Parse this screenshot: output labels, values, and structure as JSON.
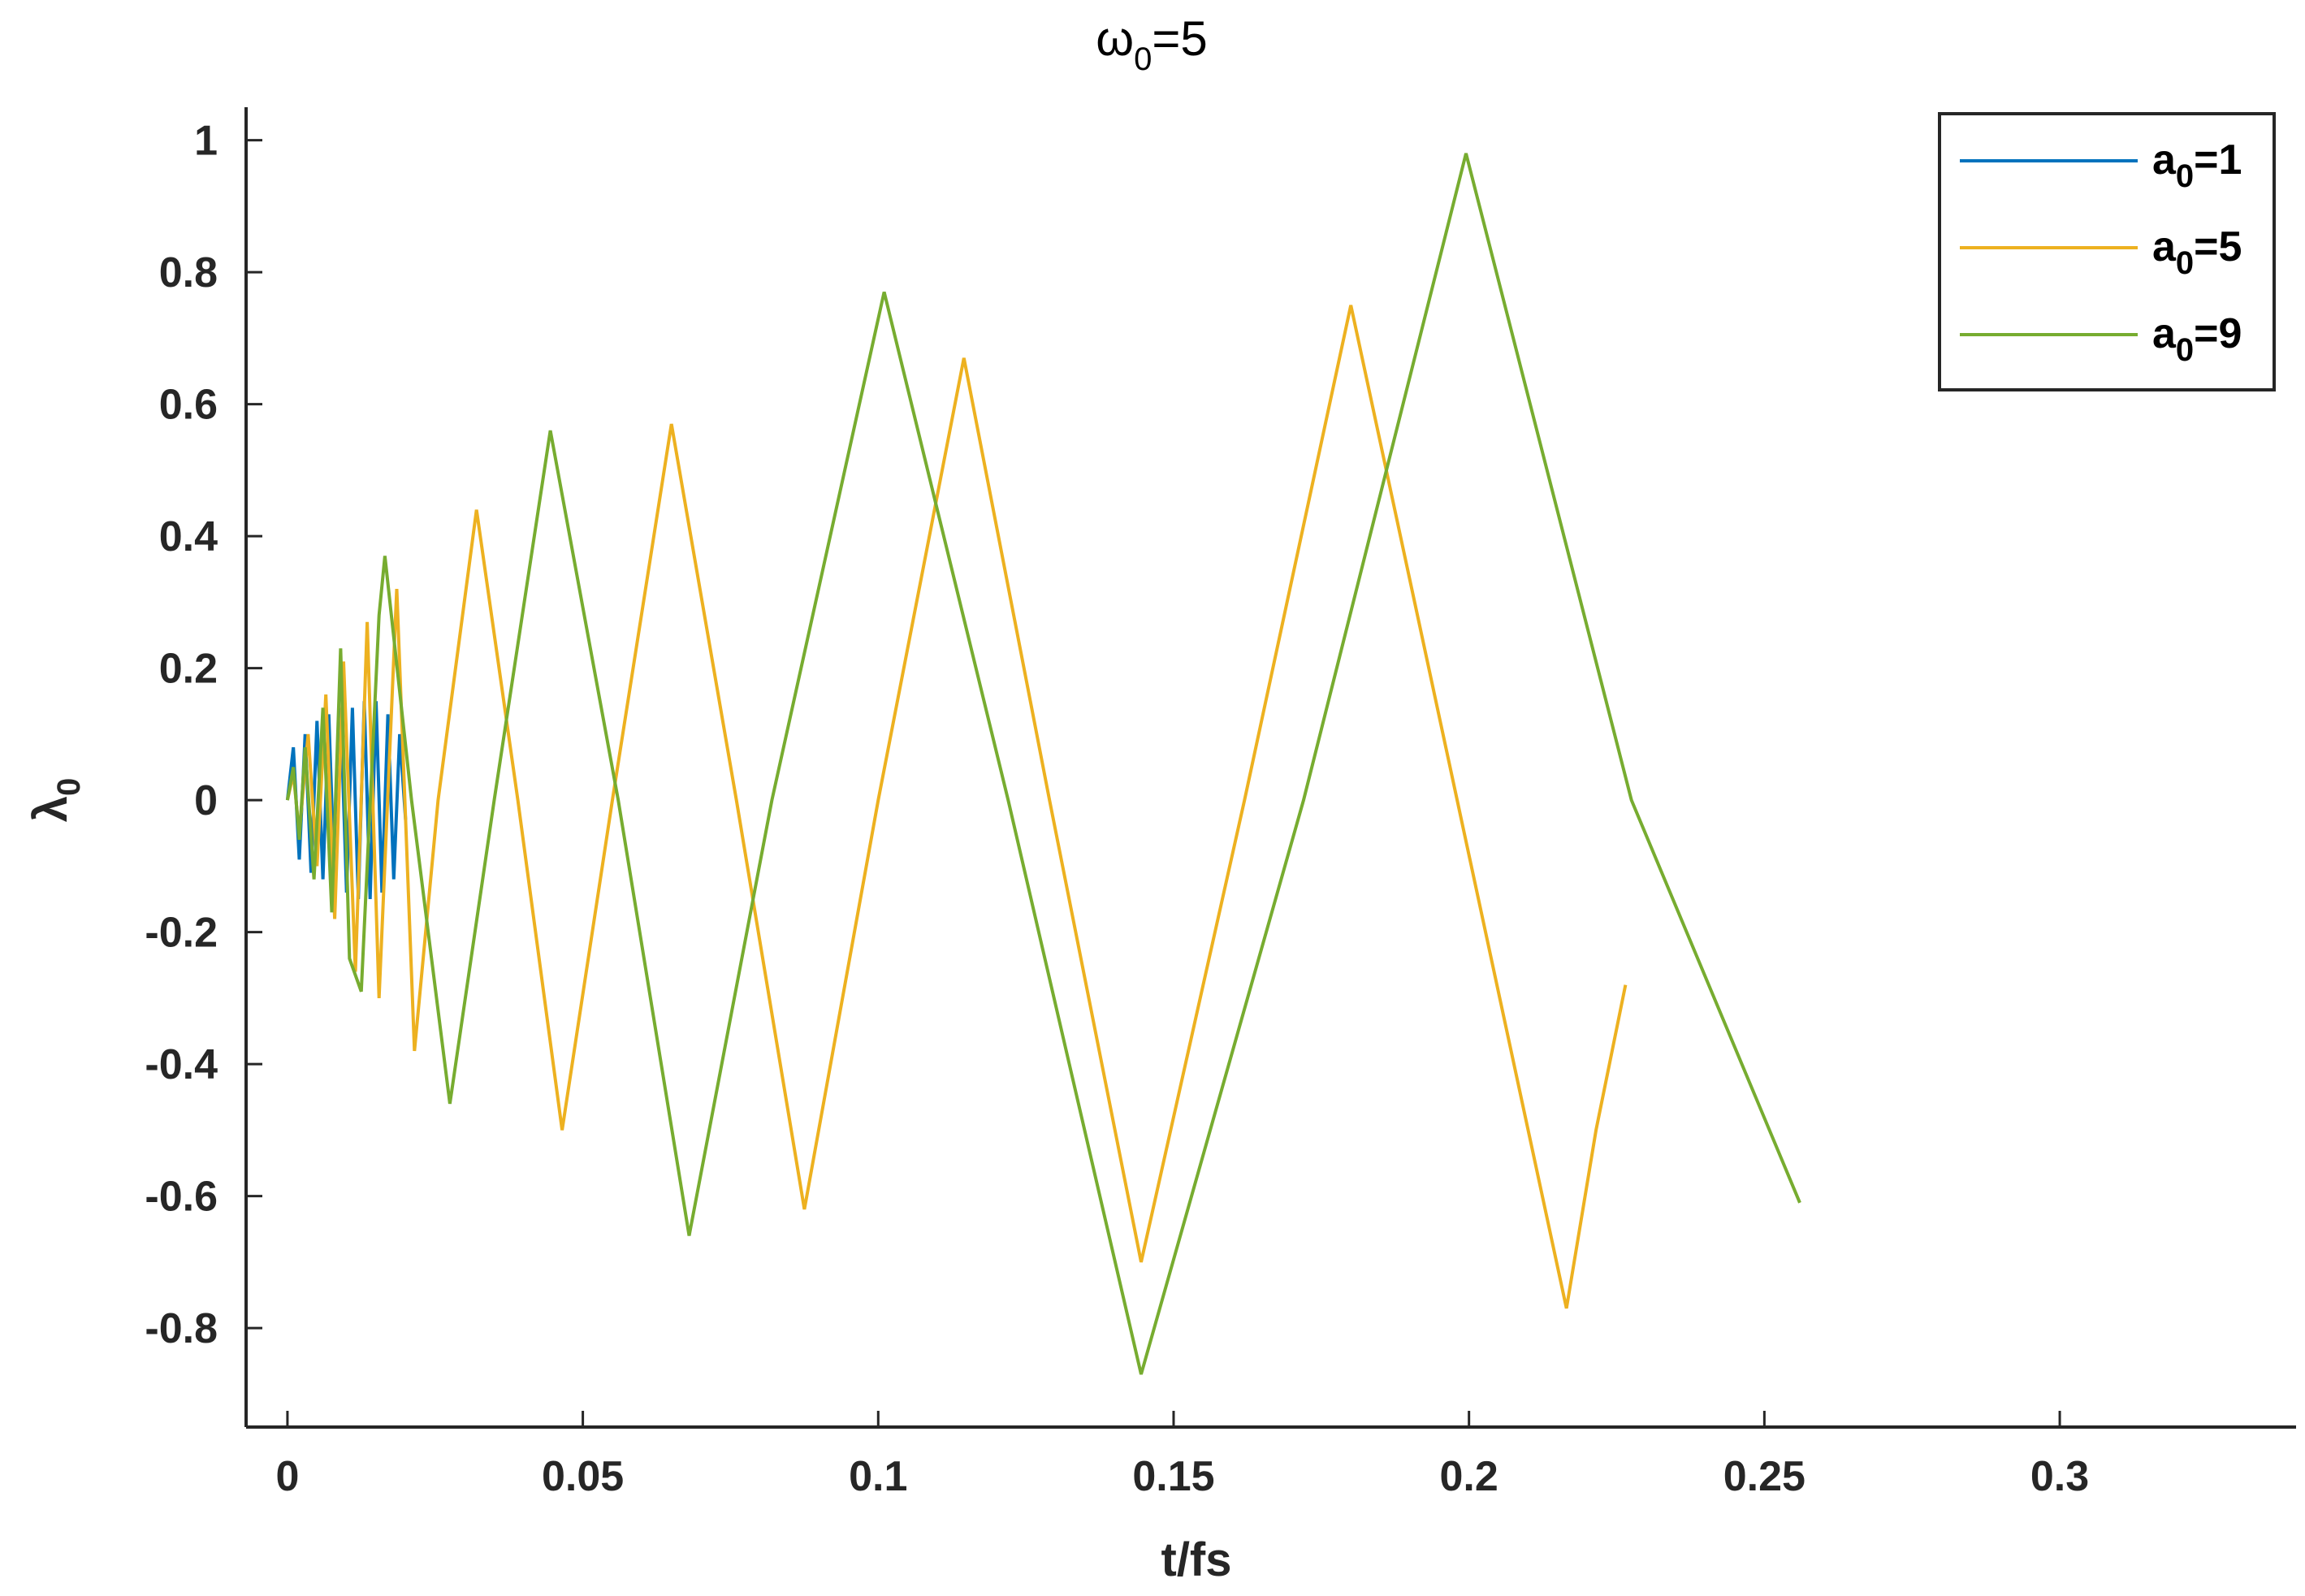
{
  "chart_data": {
    "type": "line",
    "title": {
      "base": "ω",
      "sub": "0",
      "suffix": "=5"
    },
    "xlabel": "t/fs",
    "ylabel": {
      "base": "λ",
      "sub": "0"
    },
    "xlim": [
      -0.007,
      0.34
    ],
    "ylim": [
      -0.95,
      1.05
    ],
    "xticks": [
      0,
      0.05,
      0.1,
      0.15,
      0.2,
      0.25,
      0.3
    ],
    "xtick_labels": [
      "0",
      "0.05",
      "0.1",
      "0.15",
      "0.2",
      "0.25",
      "0.3"
    ],
    "yticks": [
      -0.8,
      -0.6,
      -0.4,
      -0.2,
      0,
      0.2,
      0.4,
      0.6,
      0.8,
      1
    ],
    "ytick_labels": [
      "-0.8",
      "-0.6",
      "-0.4",
      "-0.2",
      "0",
      "0.2",
      "0.4",
      "0.6",
      "0.8",
      "1"
    ],
    "grid": false,
    "legend_position": "top-right",
    "series": [
      {
        "name": {
          "base": "a",
          "sub": "0",
          "suffix": "=1"
        },
        "color": "#0072BD",
        "x": [
          0,
          0.001,
          0.002,
          0.003,
          0.004,
          0.005,
          0.006,
          0.007,
          0.008,
          0.009,
          0.01,
          0.011,
          0.012,
          0.013,
          0.014,
          0.015,
          0.016,
          0.017,
          0.018,
          0.019,
          0.02
        ],
        "y": [
          0,
          0.08,
          -0.09,
          0.1,
          -0.11,
          0.12,
          -0.12,
          0.13,
          -0.13,
          0.14,
          -0.14,
          0.14,
          -0.15,
          0.15,
          -0.15,
          0.15,
          -0.14,
          0.13,
          -0.12,
          0.1,
          -0.03
        ]
      },
      {
        "name": {
          "base": "a",
          "sub": "0",
          "suffix": "=5"
        },
        "color": "#EDB120",
        "x": [
          0,
          0.001,
          0.002,
          0.0035,
          0.005,
          0.0065,
          0.008,
          0.0095,
          0.0115,
          0.0135,
          0.0155,
          0.0185,
          0.0215,
          0.0255,
          0.032,
          0.039,
          0.0465,
          0.055,
          0.065,
          0.076,
          0.0875,
          0.1,
          0.1145,
          0.129,
          0.1445,
          0.162,
          0.18,
          0.198,
          0.2165,
          0.2215,
          0.2265
        ],
        "y": [
          0,
          0.04,
          -0.05,
          0.1,
          -0.1,
          0.16,
          -0.18,
          0.21,
          -0.26,
          0.27,
          -0.3,
          0.32,
          -0.38,
          0.0,
          0.44,
          0.0,
          -0.5,
          0.0,
          0.57,
          0.0,
          -0.62,
          0.0,
          0.67,
          0.0,
          -0.7,
          0.0,
          0.75,
          0.0,
          -0.77,
          -0.5,
          -0.28
        ]
      },
      {
        "name": {
          "base": "a",
          "sub": "0",
          "suffix": "=9"
        },
        "color": "#77AC30",
        "x": [
          0,
          0.001,
          0.002,
          0.003,
          0.0045,
          0.006,
          0.0075,
          0.009,
          0.0105,
          0.0125,
          0.0155,
          0.0165,
          0.021,
          0.0275,
          0.035,
          0.0445,
          0.056,
          0.068,
          0.082,
          0.101,
          0.122,
          0.1445,
          0.172,
          0.1995,
          0.2275,
          0.256
        ],
        "y": [
          0,
          0.05,
          -0.06,
          0.08,
          -0.12,
          0.14,
          -0.17,
          0.23,
          -0.24,
          -0.29,
          0.28,
          0.37,
          0.0,
          -0.46,
          0.0,
          0.56,
          0.0,
          -0.66,
          0.0,
          0.77,
          0.0,
          -0.87,
          0.0,
          0.98,
          0.0,
          -0.61
        ]
      }
    ]
  }
}
